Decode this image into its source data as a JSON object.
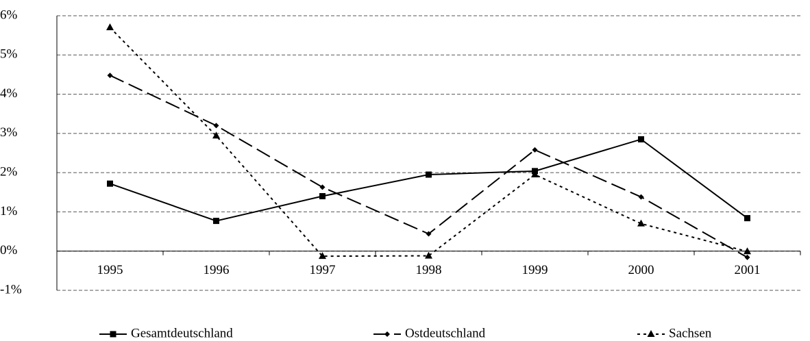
{
  "chart_data": {
    "type": "line",
    "categories": [
      "1995",
      "1996",
      "1997",
      "1998",
      "1999",
      "2000",
      "2001"
    ],
    "series": [
      {
        "name": "Gesamtdeutschland",
        "color": "#000000",
        "dash": "solid",
        "marker": "square",
        "values": [
          1.72,
          0.77,
          1.4,
          1.95,
          2.04,
          2.85,
          0.84
        ]
      },
      {
        "name": "Ostdeutschland",
        "color": "#000000",
        "dash": "long-dash",
        "marker": "diamond",
        "values": [
          4.48,
          3.2,
          1.63,
          0.44,
          2.58,
          1.38,
          -0.16
        ]
      },
      {
        "name": "Sachsen",
        "color": "#000000",
        "dash": "dotted",
        "marker": "triangle",
        "values": [
          5.7,
          2.94,
          -0.13,
          -0.12,
          1.95,
          0.7,
          -0.01
        ]
      }
    ],
    "ylim": [
      -1,
      6
    ],
    "yticks": [
      {
        "value": -1,
        "label": "-1%"
      },
      {
        "value": 0,
        "label": "0%"
      },
      {
        "value": 1,
        "label": "1%"
      },
      {
        "value": 2,
        "label": "2%"
      },
      {
        "value": 3,
        "label": "3%"
      },
      {
        "value": 4,
        "label": "4%"
      },
      {
        "value": 5,
        "label": "5%"
      },
      {
        "value": 6,
        "label": "6%"
      }
    ],
    "grid": true,
    "legend": "bottom"
  }
}
